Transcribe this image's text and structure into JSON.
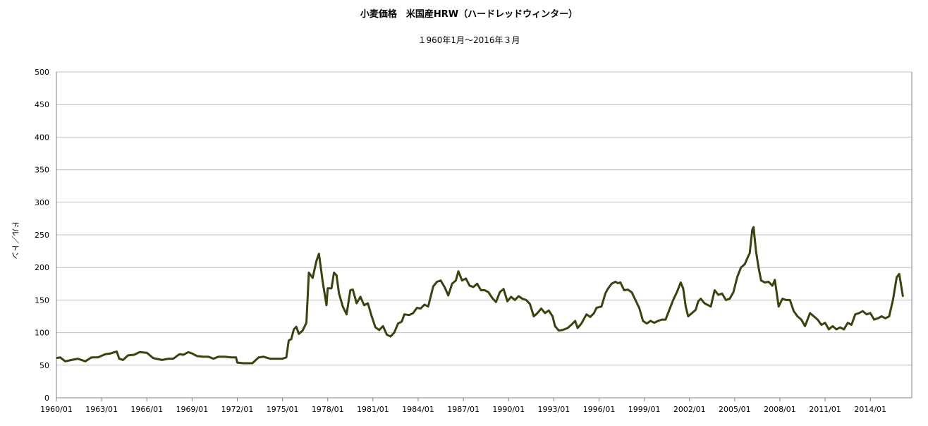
{
  "chart_data": {
    "type": "line",
    "title": "小麦価格　米国産HRW（ハードレッドウィンター）",
    "subtitle": "１960年1月～2016年３月",
    "ylabel": "ドル／トン",
    "xlabel": "",
    "ylim": [
      0,
      500
    ],
    "yticks": [
      "0",
      "50",
      "100",
      "150",
      "200",
      "250",
      "300",
      "350",
      "400",
      "450",
      "500"
    ],
    "xticks": [
      "1960/01",
      "1963/01",
      "1966/01",
      "1969/01",
      "1972/01",
      "1975/01",
      "1978/01",
      "1981/01",
      "1984/01",
      "1987/01",
      "1990/01",
      "1993/01",
      "1996/01",
      "1999/01",
      "2002/01",
      "2005/01",
      "2008/01",
      "2011/01",
      "2014/01"
    ],
    "grid": "horizontal",
    "legend": "none",
    "line_color": "#3a420e",
    "series": [
      {
        "points": [
          [
            "1960/01",
            61
          ],
          [
            "1960/04",
            62
          ],
          [
            "1960/08",
            56
          ],
          [
            "1961/01",
            58
          ],
          [
            "1961/06",
            60
          ],
          [
            "1961/12",
            56
          ],
          [
            "1962/05",
            62
          ],
          [
            "1962/10",
            62
          ],
          [
            "1963/04",
            67
          ],
          [
            "1963/08",
            68
          ],
          [
            "1964/01",
            71
          ],
          [
            "1964/03",
            60
          ],
          [
            "1964/06",
            58
          ],
          [
            "1964/10",
            65
          ],
          [
            "1965/03",
            66
          ],
          [
            "1965/07",
            70
          ],
          [
            "1966/01",
            69
          ],
          [
            "1966/06",
            61
          ],
          [
            "1967/01",
            58
          ],
          [
            "1967/06",
            60
          ],
          [
            "1967/10",
            60
          ],
          [
            "1968/03",
            67
          ],
          [
            "1968/06",
            66
          ],
          [
            "1968/10",
            70
          ],
          [
            "1969/01",
            68
          ],
          [
            "1969/05",
            64
          ],
          [
            "1969/10",
            63
          ],
          [
            "1970/02",
            63
          ],
          [
            "1970/06",
            60
          ],
          [
            "1970/10",
            63
          ],
          [
            "1971/03",
            63
          ],
          [
            "1971/08",
            62
          ],
          [
            "1971/12",
            62
          ],
          [
            "1972/01",
            54
          ],
          [
            "1972/06",
            53
          ],
          [
            "1973/01",
            53
          ],
          [
            "1973/06",
            62
          ],
          [
            "1973/10",
            63
          ],
          [
            "1974/03",
            60
          ],
          [
            "1974/08",
            60
          ],
          [
            "1975/01",
            60
          ],
          [
            "1975/04",
            62
          ],
          [
            "1975/06",
            88
          ],
          [
            "1975/08",
            90
          ],
          [
            "1975/10",
            105
          ],
          [
            "1975/12",
            109
          ],
          [
            "1976/02",
            98
          ],
          [
            "1976/05",
            103
          ],
          [
            "1976/08",
            115
          ],
          [
            "1976/10",
            192
          ],
          [
            "1977/01",
            184
          ],
          [
            "1977/04",
            210
          ],
          [
            "1977/06",
            221
          ],
          [
            "1977/09",
            178
          ],
          [
            "1977/12",
            142
          ],
          [
            "1978/01",
            168
          ],
          [
            "1978/04",
            168
          ],
          [
            "1978/06",
            192
          ],
          [
            "1978/08",
            188
          ],
          [
            "1978/10",
            160
          ],
          [
            "1979/01",
            140
          ],
          [
            "1979/04",
            128
          ],
          [
            "1979/07",
            165
          ],
          [
            "1979/09",
            166
          ],
          [
            "1979/12",
            145
          ],
          [
            "1980/03",
            155
          ],
          [
            "1980/06",
            142
          ],
          [
            "1980/09",
            145
          ],
          [
            "1980/12",
            125
          ],
          [
            "1981/03",
            108
          ],
          [
            "1981/06",
            104
          ],
          [
            "1981/09",
            110
          ],
          [
            "1981/12",
            97
          ],
          [
            "1982/03",
            94
          ],
          [
            "1982/06",
            100
          ],
          [
            "1982/09",
            114
          ],
          [
            "1982/12",
            117
          ],
          [
            "1983/02",
            128
          ],
          [
            "1983/06",
            127
          ],
          [
            "1983/09",
            130
          ],
          [
            "1983/12",
            138
          ],
          [
            "1984/03",
            137
          ],
          [
            "1984/06",
            143
          ],
          [
            "1984/09",
            140
          ],
          [
            "1985/01",
            171
          ],
          [
            "1985/04",
            178
          ],
          [
            "1985/07",
            180
          ],
          [
            "1985/10",
            170
          ],
          [
            "1986/01",
            157
          ],
          [
            "1986/04",
            175
          ],
          [
            "1986/07",
            180
          ],
          [
            "1986/09",
            194
          ],
          [
            "1986/12",
            180
          ],
          [
            "1987/03",
            183
          ],
          [
            "1987/06",
            172
          ],
          [
            "1987/09",
            170
          ],
          [
            "1987/12",
            175
          ],
          [
            "1988/03",
            165
          ],
          [
            "1988/06",
            165
          ],
          [
            "1988/09",
            162
          ],
          [
            "1988/12",
            153
          ],
          [
            "1989/03",
            147
          ],
          [
            "1989/06",
            162
          ],
          [
            "1989/09",
            167
          ],
          [
            "1989/12",
            148
          ],
          [
            "1990/03",
            155
          ],
          [
            "1990/06",
            150
          ],
          [
            "1990/09",
            156
          ],
          [
            "1990/12",
            152
          ],
          [
            "1991/03",
            150
          ],
          [
            "1991/06",
            144
          ],
          [
            "1991/09",
            125
          ],
          [
            "1991/12",
            130
          ],
          [
            "1992/03",
            137
          ],
          [
            "1992/06",
            130
          ],
          [
            "1992/09",
            134
          ],
          [
            "1992/12",
            125
          ],
          [
            "1993/02",
            110
          ],
          [
            "1993/05",
            103
          ],
          [
            "1993/08",
            104
          ],
          [
            "1993/12",
            107
          ],
          [
            "1994/03",
            112
          ],
          [
            "1994/06",
            118
          ],
          [
            "1994/08",
            107
          ],
          [
            "1994/11",
            114
          ],
          [
            "1995/03",
            128
          ],
          [
            "1995/06",
            124
          ],
          [
            "1995/09",
            130
          ],
          [
            "1995/11",
            138
          ],
          [
            "1996/03",
            140
          ],
          [
            "1996/06",
            160
          ],
          [
            "1996/08",
            167
          ],
          [
            "1996/11",
            175
          ],
          [
            "1997/02",
            178
          ],
          [
            "1997/04",
            176
          ],
          [
            "1997/06",
            177
          ],
          [
            "1997/09",
            165
          ],
          [
            "1997/12",
            166
          ],
          [
            "1998/03",
            162
          ],
          [
            "1998/06",
            150
          ],
          [
            "1998/09",
            138
          ],
          [
            "1998/12",
            118
          ],
          [
            "1999/03",
            114
          ],
          [
            "1999/06",
            118
          ],
          [
            "1999/09",
            115
          ],
          [
            "1999/12",
            118
          ],
          [
            "2000/03",
            120
          ],
          [
            "2000/06",
            120
          ],
          [
            "2000/09",
            135
          ],
          [
            "2000/12",
            150
          ],
          [
            "2001/03",
            162
          ],
          [
            "2001/06",
            177
          ],
          [
            "2001/08",
            168
          ],
          [
            "2001/10",
            140
          ],
          [
            "2001/12",
            125
          ],
          [
            "2002/03",
            130
          ],
          [
            "2002/06",
            135
          ],
          [
            "2002/08",
            148
          ],
          [
            "2002/10",
            152
          ],
          [
            "2003/01",
            145
          ],
          [
            "2003/04",
            142
          ],
          [
            "2003/06",
            140
          ],
          [
            "2003/09",
            165
          ],
          [
            "2003/12",
            158
          ],
          [
            "2004/03",
            160
          ],
          [
            "2004/06",
            150
          ],
          [
            "2004/09",
            152
          ],
          [
            "2004/12",
            162
          ],
          [
            "2005/03",
            185
          ],
          [
            "2005/06",
            200
          ],
          [
            "2005/09",
            205
          ],
          [
            "2005/12",
            218
          ],
          [
            "2006/01",
            222
          ],
          [
            "2006/03",
            258
          ],
          [
            "2006/04",
            262
          ],
          [
            "2006/06",
            225
          ],
          [
            "2006/08",
            200
          ],
          [
            "2006/10",
            180
          ],
          [
            "2007/01",
            177
          ],
          [
            "2007/04",
            178
          ],
          [
            "2007/07",
            172
          ],
          [
            "2007/09",
            181
          ],
          [
            "2007/12",
            140
          ],
          [
            "2008/03",
            152
          ],
          [
            "2008/06",
            150
          ],
          [
            "2008/09",
            150
          ],
          [
            "2008/12",
            133
          ],
          [
            "2009/03",
            125
          ],
          [
            "2009/06",
            120
          ],
          [
            "2009/09",
            110
          ],
          [
            "2010/01",
            130
          ],
          [
            "2010/04",
            125
          ],
          [
            "2010/07",
            120
          ],
          [
            "2010/10",
            112
          ],
          [
            "2011/01",
            115
          ],
          [
            "2011/04",
            105
          ],
          [
            "2011/07",
            110
          ],
          [
            "2011/10",
            105
          ],
          [
            "2012/01",
            108
          ],
          [
            "2012/04",
            105
          ],
          [
            "2012/07",
            115
          ],
          [
            "2012/10",
            112
          ],
          [
            "2013/01",
            128
          ],
          [
            "2013/04",
            130
          ],
          [
            "2013/07",
            133
          ],
          [
            "2013/10",
            128
          ],
          [
            "2014/01",
            130
          ],
          [
            "2014/04",
            120
          ],
          [
            "2014/07",
            122
          ],
          [
            "2014/10",
            125
          ],
          [
            "2015/01",
            122
          ],
          [
            "2015/04",
            125
          ],
          [
            "2015/07",
            150
          ],
          [
            "2015/10",
            185
          ],
          [
            "2015/12",
            190
          ],
          [
            "2016/03",
            155
          ]
        ]
      }
    ]
  }
}
